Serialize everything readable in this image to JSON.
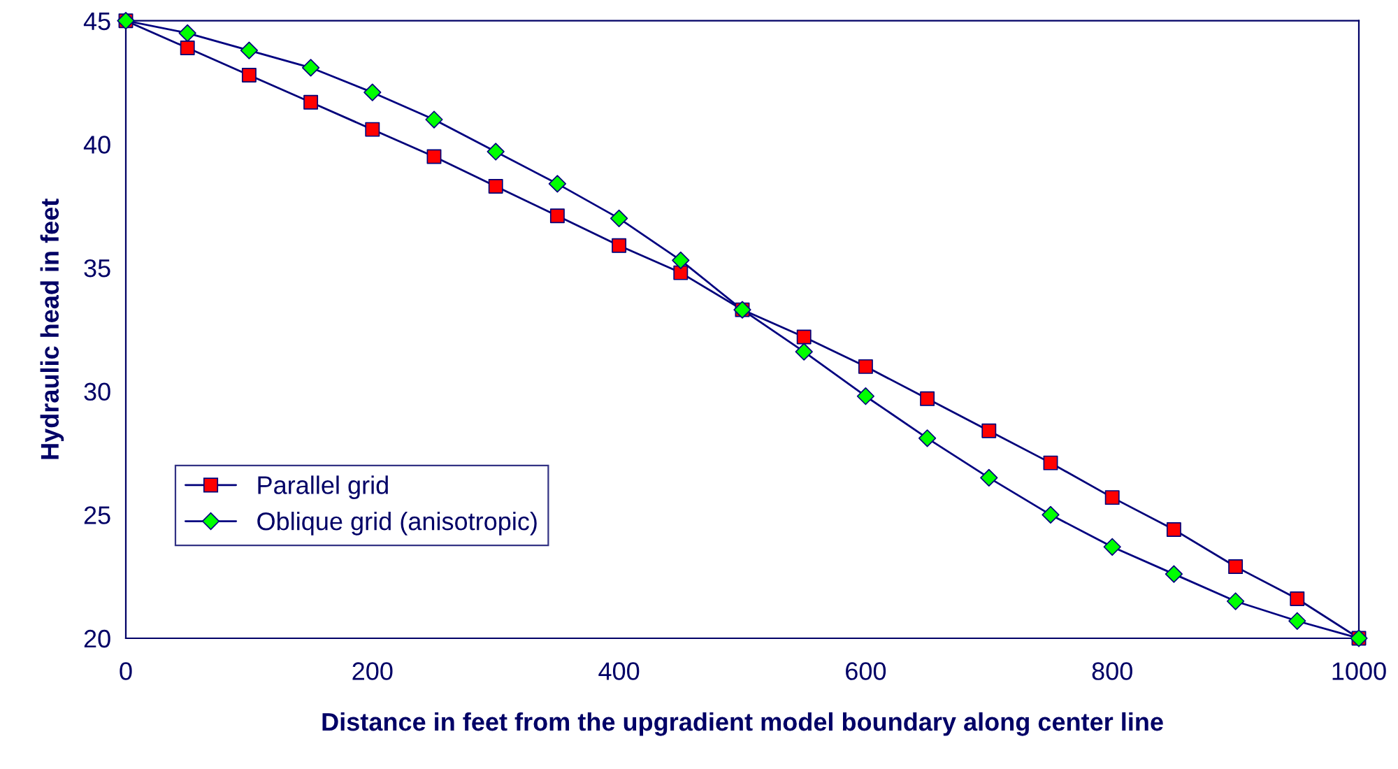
{
  "chart_data": {
    "type": "line",
    "xlabel": "Distance in feet from the upgradient model boundary along center line",
    "ylabel": "Hydraulic head in feet",
    "x": [
      0,
      50,
      100,
      150,
      200,
      250,
      300,
      350,
      400,
      450,
      500,
      550,
      600,
      650,
      700,
      750,
      800,
      850,
      900,
      950,
      1000
    ],
    "series": [
      {
        "name": "Parallel grid",
        "color": "#00007a",
        "colors": [
          "#ff0000",
          "#ff0000",
          "#ff0000",
          "#ff0000",
          "#ff0000",
          "#ff0000",
          "#ff0000",
          "#ff0000",
          "#ff0000",
          "#ff0000",
          "#ff0000",
          "#ff0000",
          "#ff0000",
          "#ff0000",
          "#ff0000",
          "#ff0000",
          "#ff0000",
          "#ff0000",
          "#ff0000",
          "#ff0000",
          "#ff0000"
        ],
        "marker": "square",
        "values": [
          45,
          43.9,
          42.8,
          41.7,
          40.6,
          39.5,
          38.3,
          37.1,
          35.9,
          34.8,
          33.3,
          32.2,
          31.0,
          29.7,
          28.4,
          27.1,
          25.7,
          24.4,
          22.9,
          21.6,
          20
        ]
      },
      {
        "name": "Oblique grid (anisotropic)",
        "color": "#000080",
        "colors": [
          "#00ff00",
          "#00ff00",
          "#00ff00",
          "#00ff00",
          "#00ff00",
          "#00ff00",
          "#00ff00",
          "#00ff00",
          "#00ff00",
          "#00ff00",
          "#00ff00",
          "#00ff00",
          "#00ff00",
          "#00ff00",
          "#00ff00",
          "#00ff00",
          "#00ff00",
          "#00ff00",
          "#00ff00",
          "#00ff00",
          "#00ff00"
        ],
        "marker": "diamond",
        "values": [
          45,
          44.5,
          43.8,
          43.1,
          42.1,
          41.0,
          39.7,
          38.4,
          37.0,
          35.3,
          33.3,
          31.6,
          29.8,
          28.1,
          26.5,
          25.0,
          23.7,
          22.6,
          21.5,
          20.7,
          20
        ]
      }
    ],
    "xlim": [
      0,
      1000
    ],
    "xticks": [
      0,
      200,
      400,
      600,
      800,
      1000
    ],
    "ylim": [
      20,
      45
    ],
    "yticks": [
      20,
      25,
      30,
      35,
      40,
      45
    ],
    "grid": false,
    "legend": "bottom left",
    "line_style": "solid"
  }
}
